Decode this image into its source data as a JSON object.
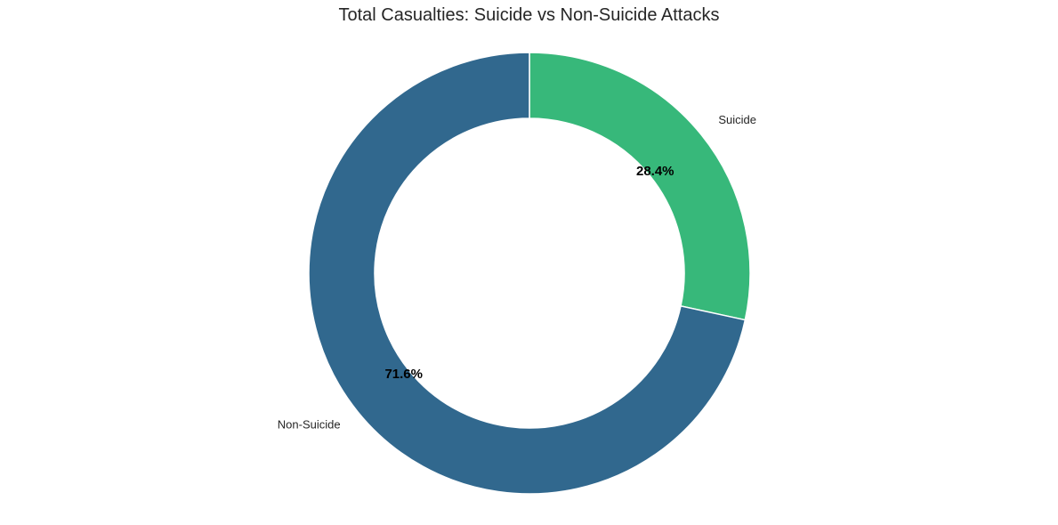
{
  "chart_data": {
    "type": "pie",
    "style": "donut",
    "title": "Total Casualties: Suicide vs Non-Suicide Attacks",
    "slices": [
      {
        "label": "Suicide",
        "value": 28.4,
        "pct_label": "28.4%",
        "color": "#37b87a"
      },
      {
        "label": "Non-Suicide",
        "value": 71.6,
        "pct_label": "71.6%",
        "color": "#31688e"
      }
    ],
    "start_angle": 90,
    "direction": "clockwise",
    "edge_color": "#ffffff"
  }
}
